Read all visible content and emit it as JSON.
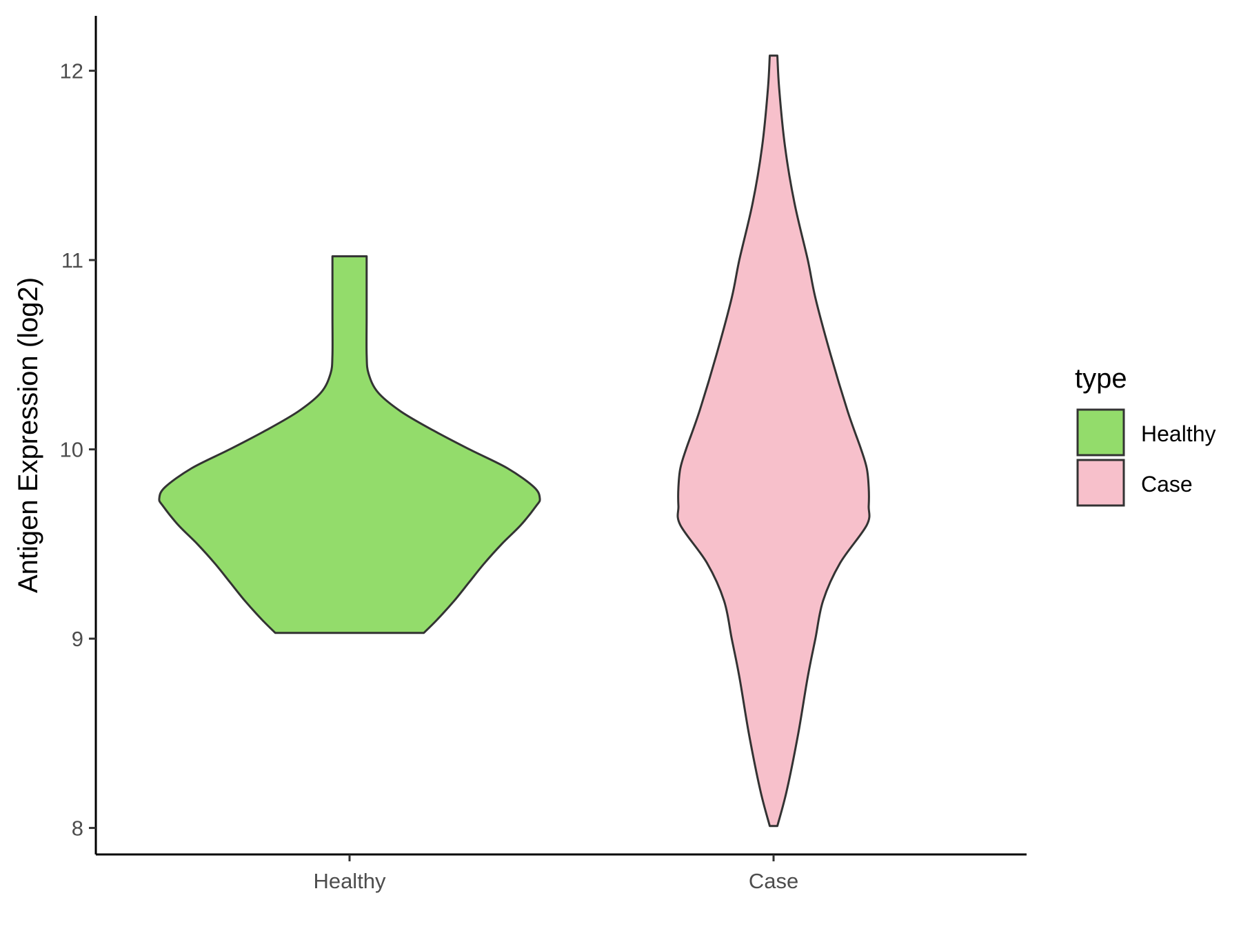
{
  "chart_data": {
    "type": "violin",
    "title": "",
    "xlabel": "",
    "ylabel": "Antigen Expression (log2)",
    "ylim": [
      7.86,
      12.29
    ],
    "yticks": [
      8,
      9,
      10,
      11,
      12
    ],
    "categories": [
      "Healthy",
      "Case"
    ],
    "grid": false,
    "legend": {
      "title": "type",
      "position": "right",
      "entries": [
        {
          "label": "Healthy",
          "color": "#93dc6b"
        },
        {
          "label": "Case",
          "color": "#f7c0cb"
        }
      ]
    },
    "series": [
      {
        "name": "Healthy",
        "color": "#93dc6b",
        "y_min": 9.03,
        "y_max": 11.02,
        "profile": [
          [
            9.03,
            0.39
          ],
          [
            9.1,
            0.46
          ],
          [
            9.2,
            0.55
          ],
          [
            9.3,
            0.63
          ],
          [
            9.4,
            0.71
          ],
          [
            9.5,
            0.8
          ],
          [
            9.6,
            0.9
          ],
          [
            9.7,
            0.98
          ],
          [
            9.74,
            1.0
          ],
          [
            9.8,
            0.97
          ],
          [
            9.9,
            0.83
          ],
          [
            10.0,
            0.63
          ],
          [
            10.1,
            0.44
          ],
          [
            10.2,
            0.27
          ],
          [
            10.3,
            0.15
          ],
          [
            10.4,
            0.1
          ],
          [
            10.5,
            0.09
          ],
          [
            10.7,
            0.09
          ],
          [
            10.9,
            0.09
          ],
          [
            11.02,
            0.09
          ]
        ]
      },
      {
        "name": "Case",
        "color": "#f7c0cb",
        "y_min": 8.01,
        "y_max": 12.08,
        "profile": [
          [
            8.01,
            0.02
          ],
          [
            8.2,
            0.07
          ],
          [
            8.5,
            0.13
          ],
          [
            8.8,
            0.18
          ],
          [
            9.0,
            0.22
          ],
          [
            9.2,
            0.26
          ],
          [
            9.4,
            0.35
          ],
          [
            9.6,
            0.49
          ],
          [
            9.7,
            0.5
          ],
          [
            9.8,
            0.5
          ],
          [
            9.9,
            0.49
          ],
          [
            10.0,
            0.46
          ],
          [
            10.2,
            0.39
          ],
          [
            10.5,
            0.3
          ],
          [
            10.8,
            0.22
          ],
          [
            11.0,
            0.18
          ],
          [
            11.3,
            0.11
          ],
          [
            11.6,
            0.06
          ],
          [
            11.9,
            0.03
          ],
          [
            12.08,
            0.02
          ]
        ]
      }
    ]
  }
}
